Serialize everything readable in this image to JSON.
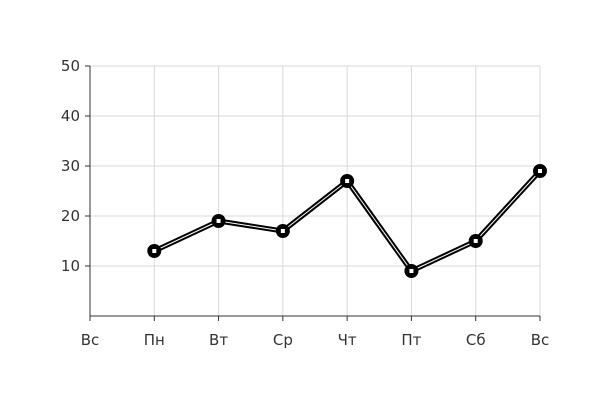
{
  "chart_data": {
    "type": "line",
    "title": "",
    "xlabel": "",
    "ylabel": "",
    "categories": [
      "Вс",
      "Пн",
      "Вт",
      "Ср",
      "Чт",
      "Пт",
      "Сб",
      "Вс"
    ],
    "series": [
      {
        "values": [
          null,
          13,
          19,
          17,
          27,
          9,
          15,
          29
        ]
      }
    ],
    "ylim": [
      0,
      50
    ],
    "yticks": [
      10,
      20,
      30,
      40,
      50
    ],
    "grid": true,
    "legend": "none",
    "colors": {
      "line": "#000000",
      "marker_fill": "#ffffff",
      "grid": "#d9d9d9",
      "axis": "#333333"
    }
  }
}
